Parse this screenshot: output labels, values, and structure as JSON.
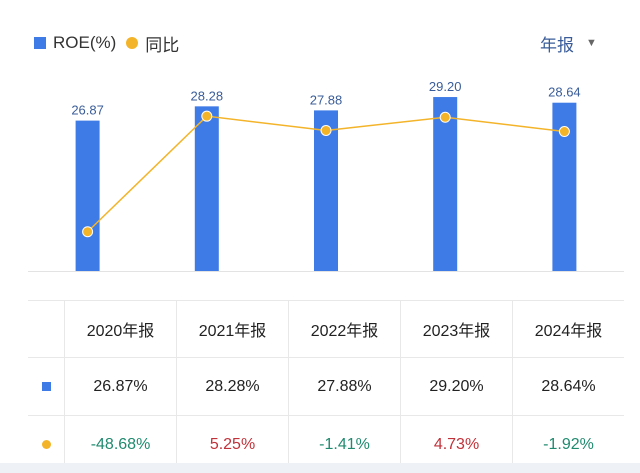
{
  "legend": {
    "bar_label": "ROE(%)",
    "line_label": "同比"
  },
  "period_selector": {
    "label": "年报"
  },
  "colors": {
    "bar": "#3f7be6",
    "line": "#f3b42a",
    "positive": "#c0323a",
    "negative": "#1f8a6e",
    "bar_label": "#3a5d99"
  },
  "chart_data": {
    "type": "bar",
    "categories": [
      "2020年报",
      "2021年报",
      "2022年报",
      "2023年报",
      "2024年报"
    ],
    "series": [
      {
        "name": "ROE(%)",
        "type": "bar",
        "values": [
          26.87,
          28.28,
          27.88,
          29.2,
          28.64
        ],
        "labels": [
          "26.87",
          "28.28",
          "27.88",
          "29.20",
          "28.64"
        ]
      },
      {
        "name": "同比",
        "type": "line",
        "values": [
          -48.68,
          5.25,
          -1.41,
          4.73,
          -1.92
        ]
      }
    ]
  },
  "table": {
    "headers": [
      "2020年报",
      "2021年报",
      "2022年报",
      "2023年报",
      "2024年报"
    ],
    "roe_row": [
      "26.87%",
      "28.28%",
      "27.88%",
      "29.20%",
      "28.64%"
    ],
    "yoy_row": [
      "-48.68%",
      "5.25%",
      "-1.41%",
      "4.73%",
      "-1.92%"
    ]
  }
}
